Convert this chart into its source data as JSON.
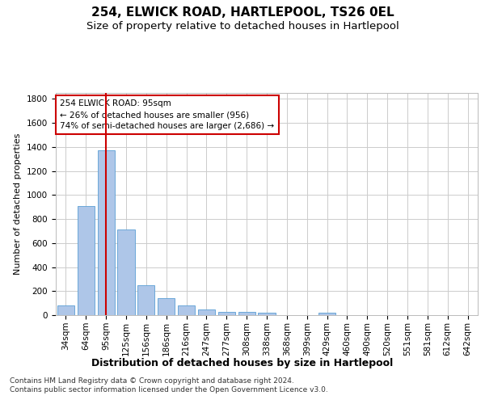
{
  "title1": "254, ELWICK ROAD, HARTLEPOOL, TS26 0EL",
  "title2": "Size of property relative to detached houses in Hartlepool",
  "xlabel": "Distribution of detached houses by size in Hartlepool",
  "ylabel": "Number of detached properties",
  "categories": [
    "34sqm",
    "64sqm",
    "95sqm",
    "125sqm",
    "156sqm",
    "186sqm",
    "216sqm",
    "247sqm",
    "277sqm",
    "308sqm",
    "338sqm",
    "368sqm",
    "399sqm",
    "429sqm",
    "460sqm",
    "490sqm",
    "520sqm",
    "551sqm",
    "581sqm",
    "612sqm",
    "642sqm"
  ],
  "values": [
    82,
    910,
    1370,
    715,
    248,
    140,
    83,
    50,
    30,
    30,
    18,
    0,
    0,
    20,
    0,
    0,
    0,
    0,
    0,
    0,
    0
  ],
  "bar_color": "#aec6e8",
  "bar_edge_color": "#5a9fd4",
  "vline_x_index": 2,
  "vline_color": "#cc0000",
  "annotation_text": "254 ELWICK ROAD: 95sqm\n← 26% of detached houses are smaller (956)\n74% of semi-detached houses are larger (2,686) →",
  "annotation_box_color": "#ffffff",
  "annotation_box_edge": "#cc0000",
  "ylim": [
    0,
    1850
  ],
  "yticks": [
    0,
    200,
    400,
    600,
    800,
    1000,
    1200,
    1400,
    1600,
    1800
  ],
  "footnote": "Contains HM Land Registry data © Crown copyright and database right 2024.\nContains public sector information licensed under the Open Government Licence v3.0.",
  "background_color": "#ffffff",
  "grid_color": "#cccccc",
  "title1_fontsize": 11,
  "title2_fontsize": 9.5,
  "xlabel_fontsize": 9,
  "ylabel_fontsize": 8,
  "footnote_fontsize": 6.5,
  "tick_fontsize": 7.5,
  "annotation_fontsize": 7.5
}
